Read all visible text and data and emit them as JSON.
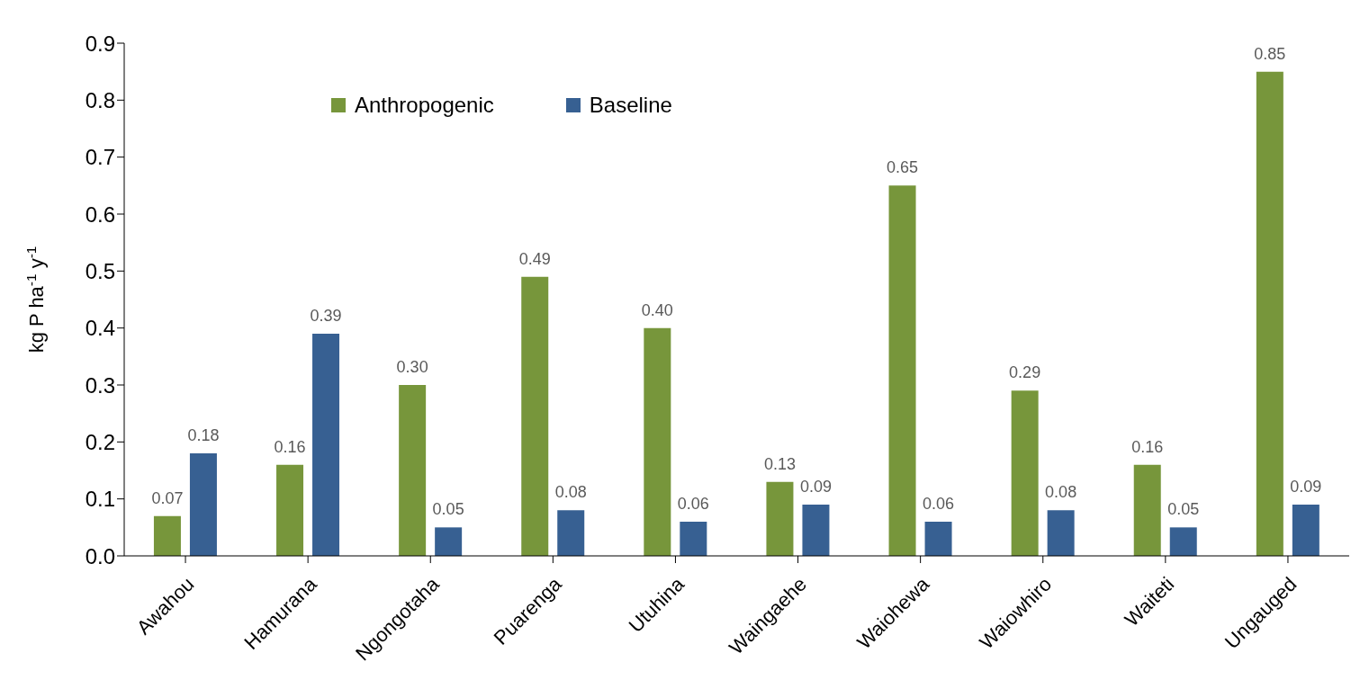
{
  "chart_data": {
    "type": "bar",
    "ylabel": "kg P ha$^{-1}$ y$^{-1}$",
    "categories": [
      "Awahou",
      "Hamurana",
      "Ngongotaha",
      "Puarenga",
      "Utuhina",
      "Waingaehe",
      "Waiohewa",
      "Waiowhiro",
      "Waiteti",
      "Ungauged"
    ],
    "series": [
      {
        "name": "Anthropogenic",
        "color": "#77963b",
        "values": [
          0.07,
          0.16,
          0.3,
          0.49,
          0.4,
          0.13,
          0.65,
          0.29,
          0.16,
          0.85
        ],
        "value_labels": [
          "0.07",
          "0.16",
          "0.30",
          "0.49",
          "0.40",
          "0.13",
          "0.65",
          "0.29",
          "0.16",
          "0.85"
        ]
      },
      {
        "name": "Baseline",
        "color": "#376092",
        "values": [
          0.18,
          0.39,
          0.05,
          0.08,
          0.06,
          0.09,
          0.06,
          0.08,
          0.05,
          0.09
        ],
        "value_labels": [
          "0.18",
          "0.39",
          "0.05",
          "0.08",
          "0.06",
          "0.09",
          "0.06",
          "0.08",
          "0.05",
          "0.09"
        ]
      }
    ],
    "ylim": [
      0,
      0.9
    ],
    "yticks": [
      {
        "value": 0,
        "label": "0.0"
      },
      0.1,
      0.2,
      0.3,
      0.4,
      0.5,
      0.6,
      0.7,
      0.8,
      0.9
    ],
    "grid": false,
    "legend": "top"
  }
}
